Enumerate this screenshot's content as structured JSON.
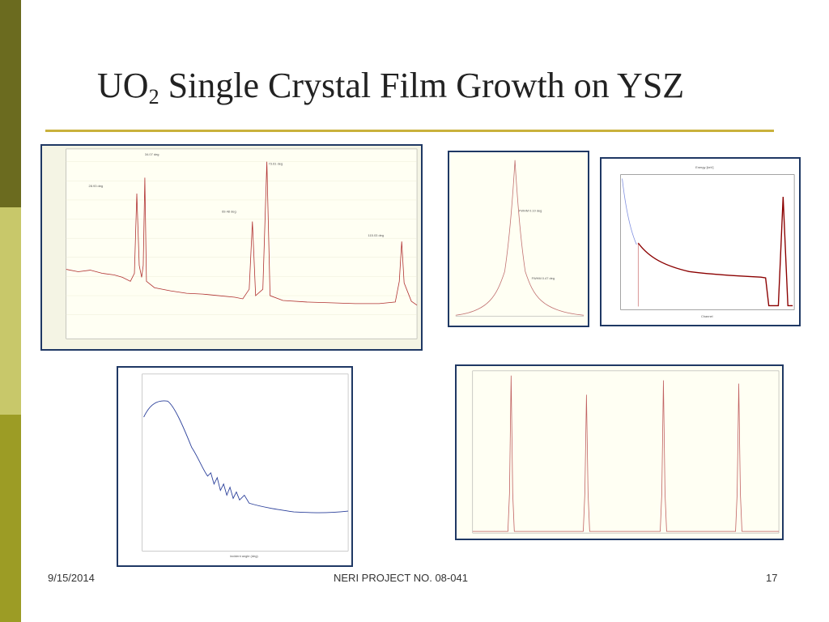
{
  "slide": {
    "title_main": "UO",
    "title_sub": "2",
    "title_rest": " Single Crystal Film Growth on YSZ",
    "footer_date": "9/15/2014",
    "footer_center": "NERI PROJECT NO. 08-041",
    "footer_page": "17"
  },
  "colors": {
    "sidebar_dark": "#6b6b1f",
    "sidebar_light": "#c8c86a",
    "sidebar_mid": "#9c9c25",
    "rule": "#c9b13c",
    "panel_border": "#1f3864",
    "plot_bg": "#fffff3",
    "trace_red": "#b03030",
    "trace_blue": "#2a3f9a",
    "trace_darkred": "#8b0000"
  },
  "figures": [
    {
      "name": "xrd-theta-2theta-scan",
      "description_icon": "log-intensity-plot"
    },
    {
      "name": "rocking-curve",
      "description_icon": "peak-plot"
    },
    {
      "name": "rbs-spectrum",
      "description_icon": "energy-spectrum-plot"
    },
    {
      "name": "x-ray-reflectivity",
      "description_icon": "reflectivity-plot"
    },
    {
      "name": "phi-scan",
      "description_icon": "four-peak-plot"
    }
  ]
}
